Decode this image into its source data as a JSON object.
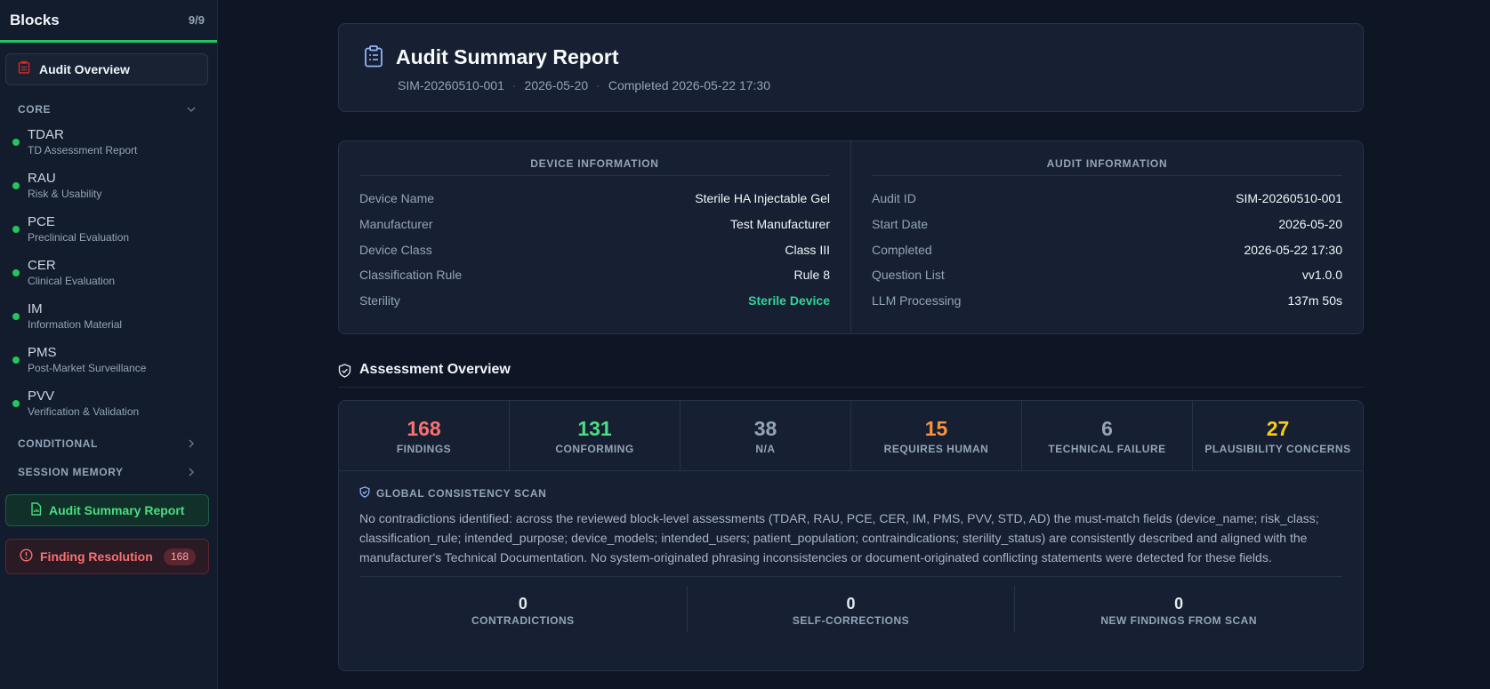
{
  "sidebar": {
    "title": "Blocks",
    "count": "9/9",
    "overview_label": "Audit Overview",
    "core_label": "CORE",
    "items": [
      {
        "code": "TDAR",
        "name": "TD Assessment Report"
      },
      {
        "code": "RAU",
        "name": "Risk & Usability"
      },
      {
        "code": "PCE",
        "name": "Preclinical Evaluation"
      },
      {
        "code": "CER",
        "name": "Clinical Evaluation"
      },
      {
        "code": "IM",
        "name": "Information Material"
      },
      {
        "code": "PMS",
        "name": "Post-Market Surveillance"
      },
      {
        "code": "PVV",
        "name": "Verification & Validation"
      }
    ],
    "conditional_label": "CONDITIONAL",
    "session_memory_label": "SESSION MEMORY",
    "summary_label": "Audit Summary Report",
    "finding_label": "Finding Resolution",
    "finding_count": "168"
  },
  "report": {
    "title": "Audit Summary Report",
    "audit_id": "SIM-20260510-001",
    "date": "2026-05-20",
    "completed": "Completed 2026-05-22 17:30"
  },
  "device_info": {
    "heading": "DEVICE INFORMATION",
    "rows": [
      {
        "k": "Device Name",
        "v": "Sterile HA Injectable Gel"
      },
      {
        "k": "Manufacturer",
        "v": "Test Manufacturer"
      },
      {
        "k": "Device Class",
        "v": "Class III"
      },
      {
        "k": "Classification Rule",
        "v": "Rule 8"
      },
      {
        "k": "Sterility",
        "v": "Sterile Device"
      }
    ]
  },
  "audit_info": {
    "heading": "AUDIT INFORMATION",
    "rows": [
      {
        "k": "Audit ID",
        "v": "SIM-20260510-001"
      },
      {
        "k": "Start Date",
        "v": "2026-05-20"
      },
      {
        "k": "Completed",
        "v": "2026-05-22 17:30"
      },
      {
        "k": "Question List",
        "v": "vv1.0.0"
      },
      {
        "k": "LLM Processing",
        "v": "137m 50s"
      }
    ]
  },
  "overview": {
    "title": "Assessment Overview",
    "stats": [
      {
        "value": "168",
        "label": "FINDINGS",
        "color": "#f87171"
      },
      {
        "value": "131",
        "label": "CONFORMING",
        "color": "#4ade80"
      },
      {
        "value": "38",
        "label": "N/A",
        "color": "#94a3b8"
      },
      {
        "value": "15",
        "label": "REQUIRES HUMAN",
        "color": "#fb923c"
      },
      {
        "value": "6",
        "label": "TECHNICAL FAILURE",
        "color": "#94a3b8"
      },
      {
        "value": "27",
        "label": "PLAUSIBILITY CONCERNS",
        "color": "#facc15"
      }
    ],
    "scan_title": "GLOBAL CONSISTENCY SCAN",
    "scan_text": "No contradictions identified: across the reviewed block-level assessments (TDAR, RAU, PCE, CER, IM, PMS, PVV, STD, AD) the must-match fields (device_name; risk_class; classification_rule; intended_purpose; device_models; intended_users; patient_population; contraindications; sterility_status) are consistently described and aligned with the manufacturer's Technical Documentation. No system-originated phrasing inconsistencies or document-originated conflicting statements were detected for these fields.",
    "mini_stats": [
      {
        "value": "0",
        "label": "CONTRADICTIONS"
      },
      {
        "value": "0",
        "label": "SELF-CORRECTIONS"
      },
      {
        "value": "0",
        "label": "NEW FINDINGS FROM SCAN"
      }
    ]
  }
}
